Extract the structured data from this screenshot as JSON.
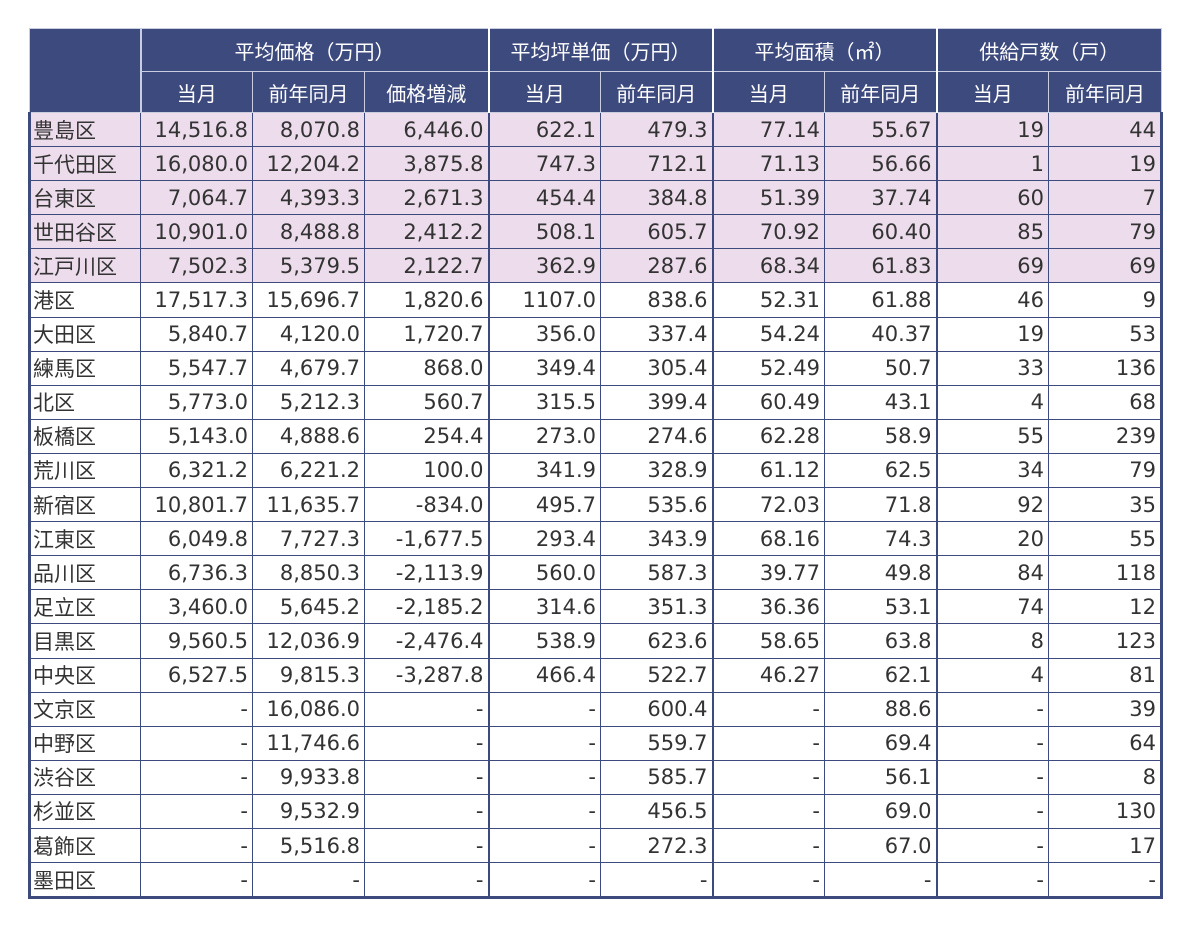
{
  "chart_data": {
    "type": "table",
    "header_groups": [
      "",
      "平均価格（万円）",
      "平均坪単価（万円）",
      "平均面積（㎡）",
      "供給戸数（戸）"
    ],
    "columns": [
      "当月",
      "前年同月",
      "価格増減",
      "当月",
      "前年同月",
      "当月",
      "前年同月",
      "当月",
      "前年同月"
    ],
    "highlight_color": "#ecdcec",
    "header_color": "#3d4a7d",
    "highlighted_rows": 5,
    "rows": [
      {
        "ward": "豊島区",
        "cells": [
          "14,516.8",
          "8,070.8",
          "6,446.0",
          "622.1",
          "479.3",
          "77.14",
          "55.67",
          "19",
          "44"
        ]
      },
      {
        "ward": "千代田区",
        "cells": [
          "16,080.0",
          "12,204.2",
          "3,875.8",
          "747.3",
          "712.1",
          "71.13",
          "56.66",
          "1",
          "19"
        ]
      },
      {
        "ward": "台東区",
        "cells": [
          "7,064.7",
          "4,393.3",
          "2,671.3",
          "454.4",
          "384.8",
          "51.39",
          "37.74",
          "60",
          "7"
        ]
      },
      {
        "ward": "世田谷区",
        "cells": [
          "10,901.0",
          "8,488.8",
          "2,412.2",
          "508.1",
          "605.7",
          "70.92",
          "60.40",
          "85",
          "79"
        ]
      },
      {
        "ward": "江戸川区",
        "cells": [
          "7,502.3",
          "5,379.5",
          "2,122.7",
          "362.9",
          "287.6",
          "68.34",
          "61.83",
          "69",
          "69"
        ]
      },
      {
        "ward": "港区",
        "cells": [
          "17,517.3",
          "15,696.7",
          "1,820.6",
          "1107.0",
          "838.6",
          "52.31",
          "61.88",
          "46",
          "9"
        ]
      },
      {
        "ward": "大田区",
        "cells": [
          "5,840.7",
          "4,120.0",
          "1,720.7",
          "356.0",
          "337.4",
          "54.24",
          "40.37",
          "19",
          "53"
        ]
      },
      {
        "ward": "練馬区",
        "cells": [
          "5,547.7",
          "4,679.7",
          "868.0",
          "349.4",
          "305.4",
          "52.49",
          "50.7",
          "33",
          "136"
        ]
      },
      {
        "ward": "北区",
        "cells": [
          "5,773.0",
          "5,212.3",
          "560.7",
          "315.5",
          "399.4",
          "60.49",
          "43.1",
          "4",
          "68"
        ]
      },
      {
        "ward": "板橋区",
        "cells": [
          "5,143.0",
          "4,888.6",
          "254.4",
          "273.0",
          "274.6",
          "62.28",
          "58.9",
          "55",
          "239"
        ]
      },
      {
        "ward": "荒川区",
        "cells": [
          "6,321.2",
          "6,221.2",
          "100.0",
          "341.9",
          "328.9",
          "61.12",
          "62.5",
          "34",
          "79"
        ]
      },
      {
        "ward": "新宿区",
        "cells": [
          "10,801.7",
          "11,635.7",
          "-834.0",
          "495.7",
          "535.6",
          "72.03",
          "71.8",
          "92",
          "35"
        ]
      },
      {
        "ward": "江東区",
        "cells": [
          "6,049.8",
          "7,727.3",
          "-1,677.5",
          "293.4",
          "343.9",
          "68.16",
          "74.3",
          "20",
          "55"
        ]
      },
      {
        "ward": "品川区",
        "cells": [
          "6,736.3",
          "8,850.3",
          "-2,113.9",
          "560.0",
          "587.3",
          "39.77",
          "49.8",
          "84",
          "118"
        ]
      },
      {
        "ward": "足立区",
        "cells": [
          "3,460.0",
          "5,645.2",
          "-2,185.2",
          "314.6",
          "351.3",
          "36.36",
          "53.1",
          "74",
          "12"
        ]
      },
      {
        "ward": "目黒区",
        "cells": [
          "9,560.5",
          "12,036.9",
          "-2,476.4",
          "538.9",
          "623.6",
          "58.65",
          "63.8",
          "8",
          "123"
        ]
      },
      {
        "ward": "中央区",
        "cells": [
          "6,527.5",
          "9,815.3",
          "-3,287.8",
          "466.4",
          "522.7",
          "46.27",
          "62.1",
          "4",
          "81"
        ]
      },
      {
        "ward": "文京区",
        "cells": [
          "-",
          "16,086.0",
          "-",
          "-",
          "600.4",
          "-",
          "88.6",
          "-",
          "39"
        ]
      },
      {
        "ward": "中野区",
        "cells": [
          "-",
          "11,746.6",
          "-",
          "-",
          "559.7",
          "-",
          "69.4",
          "-",
          "64"
        ]
      },
      {
        "ward": "渋谷区",
        "cells": [
          "-",
          "9,933.8",
          "-",
          "-",
          "585.7",
          "-",
          "56.1",
          "-",
          "8"
        ]
      },
      {
        "ward": "杉並区",
        "cells": [
          "-",
          "9,532.9",
          "-",
          "-",
          "456.5",
          "-",
          "69.0",
          "-",
          "130"
        ]
      },
      {
        "ward": "葛飾区",
        "cells": [
          "-",
          "5,516.8",
          "-",
          "-",
          "272.3",
          "-",
          "67.0",
          "-",
          "17"
        ]
      },
      {
        "ward": "墨田区",
        "cells": [
          "-",
          "-",
          "-",
          "-",
          "-",
          "-",
          "-",
          "-",
          "-"
        ]
      }
    ]
  }
}
